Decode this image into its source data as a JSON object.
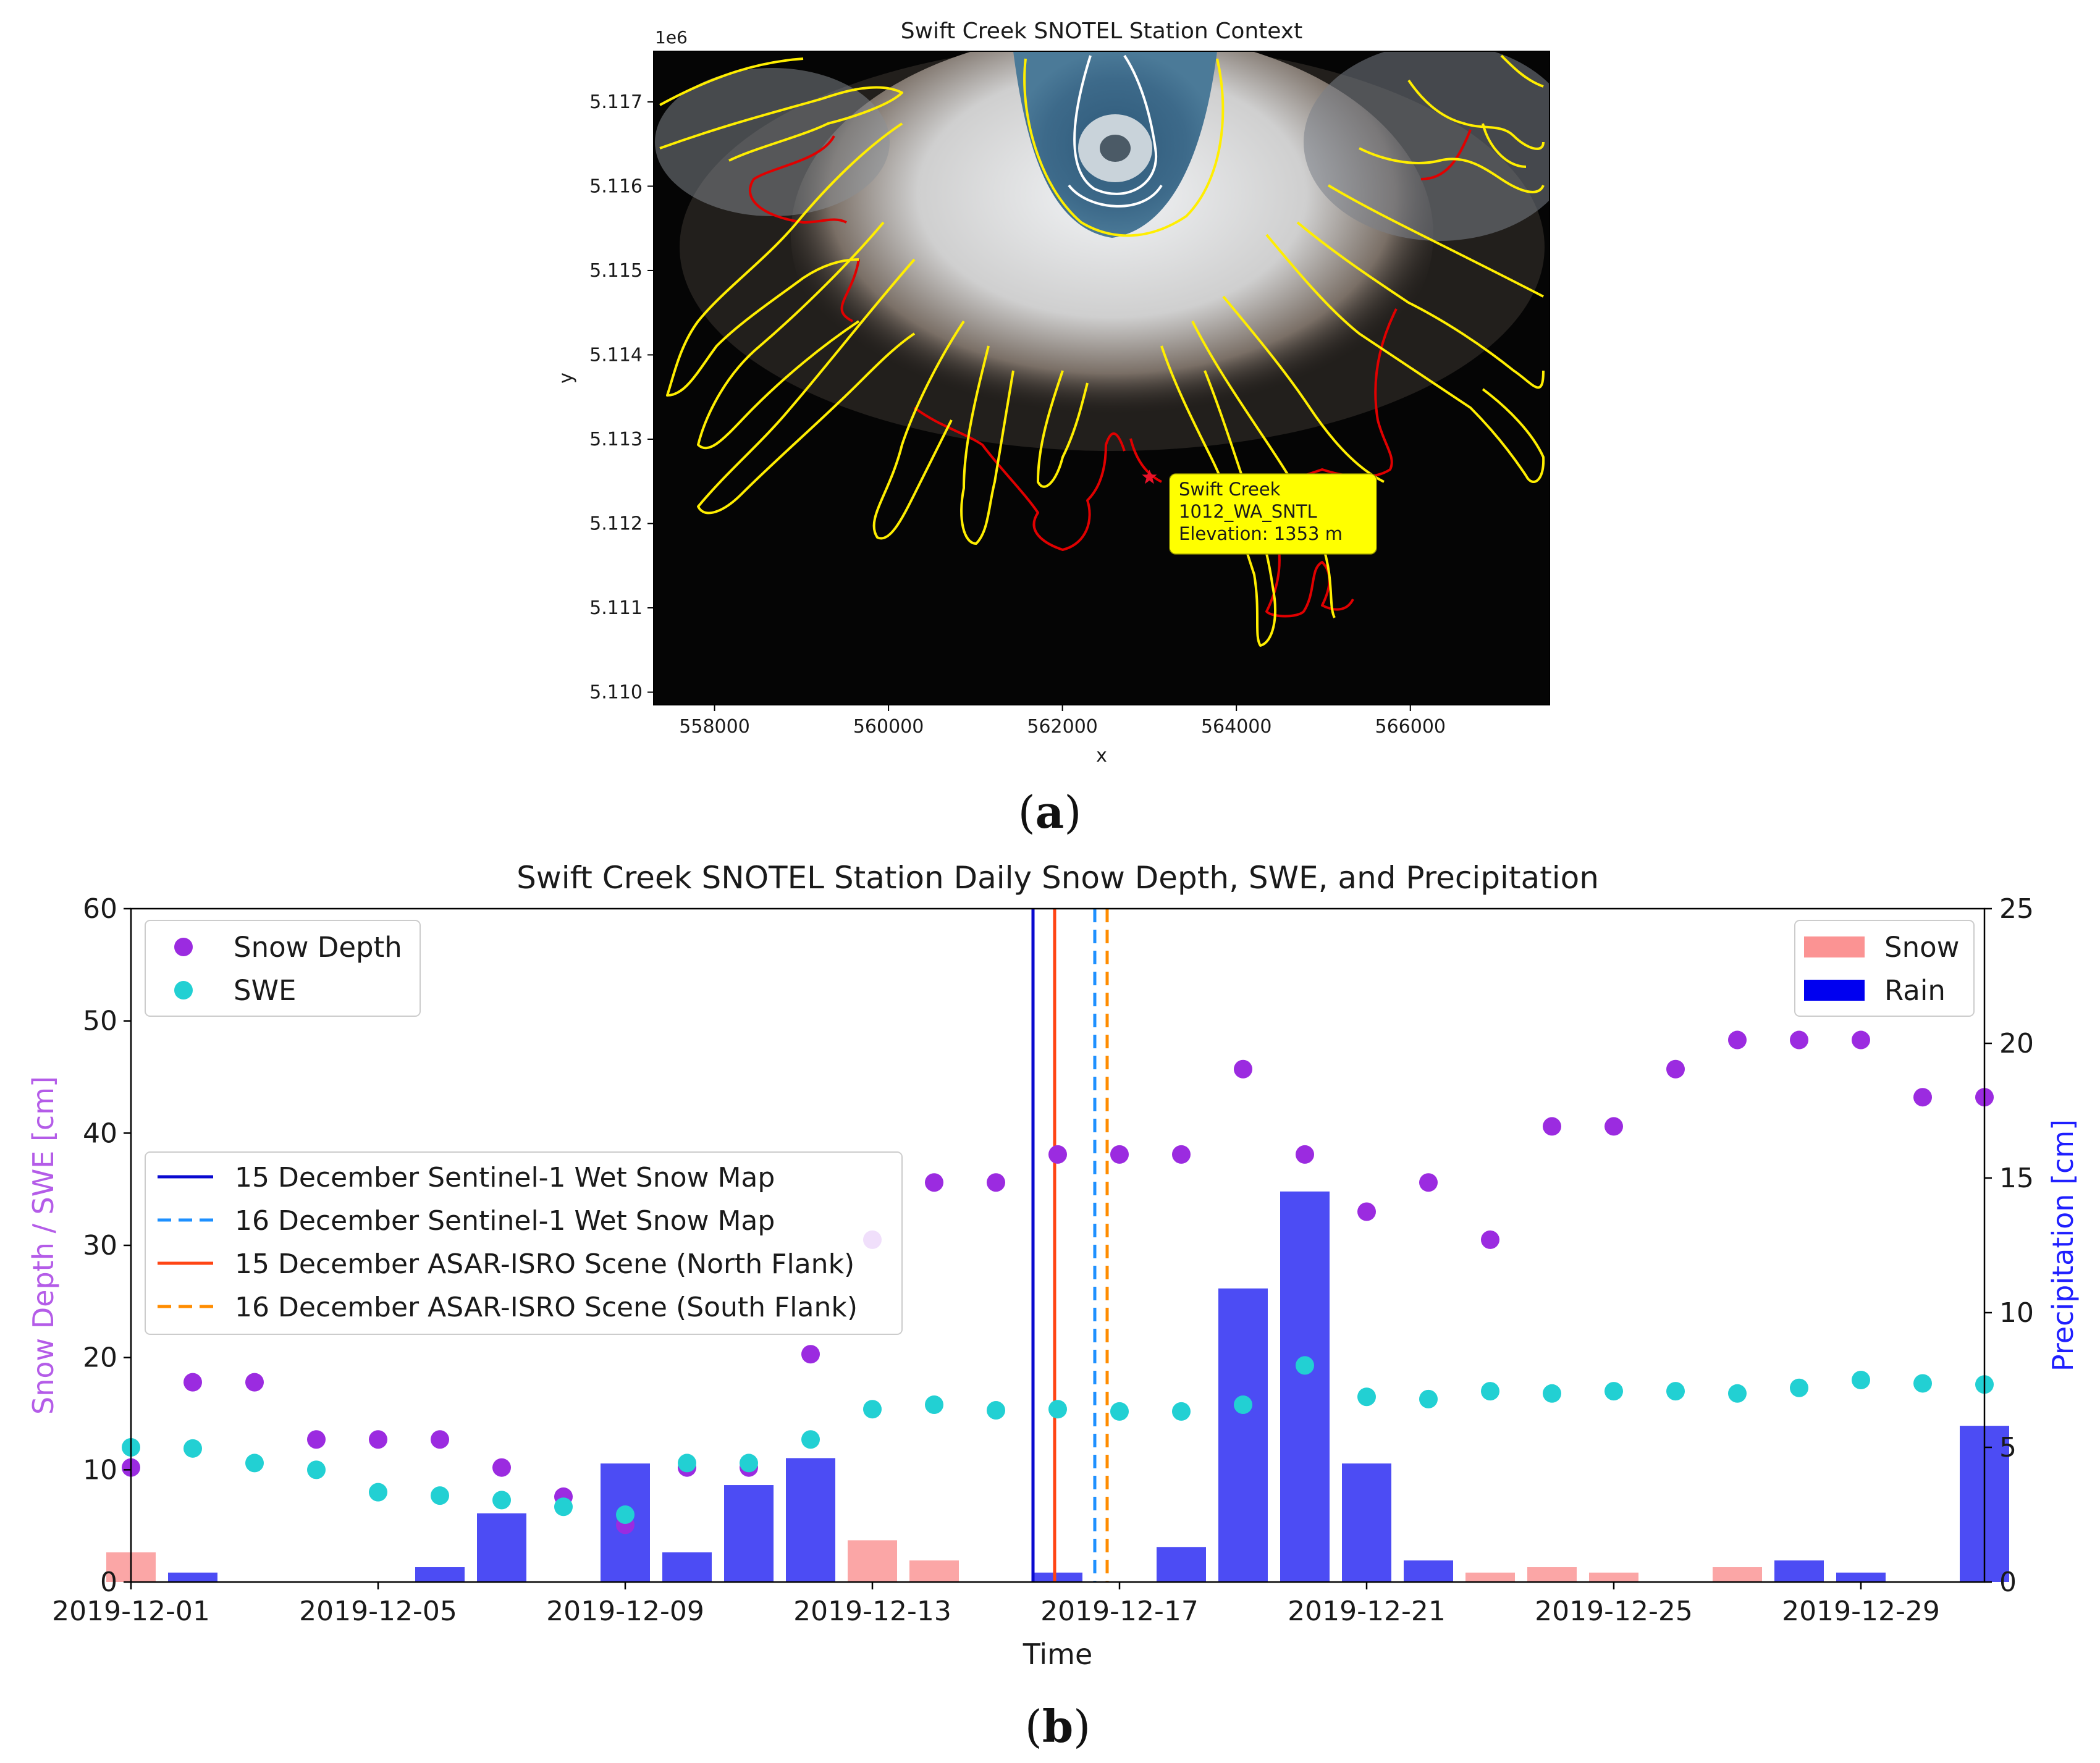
{
  "colors": {
    "snow_depth": "#9b2be0",
    "swe": "#22d0d3",
    "snow": "#fa8080",
    "rain": "#0000f0",
    "s1_line": "#0a0ad0",
    "asar_north": "#ff4514",
    "s1_dashed": "#1e90ff",
    "asar_south": "#ff8c00",
    "outline_yellow": "#ffee00",
    "outline_red": "#e00000",
    "label_box": "#ffff00",
    "left_axis_label": "#b45ce8",
    "right_axis_label": "#1f1fff"
  },
  "panel_a": {
    "caption_letter": "a",
    "chart_data": {
      "type": "map",
      "title": "Swift Creek SNOTEL Station Context",
      "xlabel": "x",
      "ylabel": "y",
      "y_offset_label": "1e6",
      "xlim": [
        557300,
        567600
      ],
      "ylim": [
        5.10985,
        5.1176
      ],
      "x_ticks": [
        558000,
        560000,
        562000,
        564000,
        566000
      ],
      "y_ticks": [
        5.11,
        5.111,
        5.112,
        5.113,
        5.114,
        5.115,
        5.116,
        5.117
      ],
      "x_tick_labels": [
        "558000",
        "560000",
        "562000",
        "564000",
        "566000"
      ],
      "y_tick_labels": [
        "5.110",
        "5.111",
        "5.112",
        "5.113",
        "5.114",
        "5.115",
        "5.116",
        "5.117"
      ],
      "station": {
        "name": "Swift Creek",
        "id": "1012_WA_SNTL",
        "elevation_text": "Elevation: 1353 m",
        "x": 563000,
        "y": 5.11255,
        "marker": "*"
      }
    }
  },
  "panel_b": {
    "caption_letter": "b",
    "chart_data": {
      "type": "scatter+bar",
      "title": "Swift Creek SNOTEL Station Daily Snow Depth, SWE, and Precipitation",
      "xlabel": "Time",
      "ylabel_left": "Snow Depth / SWE [cm]",
      "ylabel_right": "Precipitation [cm]",
      "ylim_left": [
        0,
        60
      ],
      "ylim_right": [
        0,
        25
      ],
      "x_start_date": "2019-12-01",
      "xlim_days": [
        0,
        30
      ],
      "x_tick_days": [
        0,
        4,
        8,
        12,
        16,
        20,
        24,
        28
      ],
      "x_tick_labels": [
        "2019-12-01",
        "2019-12-05",
        "2019-12-09",
        "2019-12-13",
        "2019-12-17",
        "2019-12-21",
        "2019-12-25",
        "2019-12-29"
      ],
      "y_ticks_left": [
        0,
        10,
        20,
        30,
        40,
        50,
        60
      ],
      "y_ticks_right": [
        0,
        5,
        10,
        15,
        20,
        25
      ],
      "days": [
        0,
        1,
        2,
        3,
        4,
        5,
        6,
        7,
        8,
        9,
        10,
        11,
        12,
        13,
        14,
        15,
        16,
        17,
        18,
        19,
        20,
        21,
        22,
        23,
        24,
        25,
        26,
        27,
        28,
        29,
        30
      ],
      "series": [
        {
          "name": "Snow Depth",
          "kind": "scatter",
          "values": [
            10.2,
            17.8,
            17.8,
            12.7,
            12.7,
            12.7,
            10.2,
            7.6,
            5.1,
            10.2,
            10.2,
            20.3,
            30.5,
            35.6,
            35.6,
            38.1,
            38.1,
            38.1,
            45.7,
            38.1,
            33.0,
            35.6,
            30.5,
            40.6,
            40.6,
            45.7,
            48.3,
            48.3,
            48.3,
            43.2,
            43.2
          ]
        },
        {
          "name": "SWE",
          "kind": "scatter",
          "values": [
            12.0,
            11.9,
            10.6,
            10.0,
            8.0,
            7.7,
            7.3,
            6.7,
            6.0,
            10.6,
            10.6,
            12.7,
            15.4,
            15.8,
            15.3,
            15.4,
            15.2,
            15.2,
            15.8,
            19.3,
            16.5,
            16.3,
            17.0,
            16.8,
            17.0,
            17.0,
            16.8,
            17.3,
            18.0,
            17.7,
            17.6
          ]
        },
        {
          "name": "Snow",
          "kind": "bar",
          "values": [
            1.1,
            0,
            0,
            0,
            0,
            0,
            0,
            0,
            0,
            0,
            0,
            0,
            1.55,
            0.8,
            0,
            0,
            0,
            0,
            0,
            0,
            0,
            0,
            0.35,
            0.55,
            0.35,
            0,
            0.55,
            0,
            0,
            0,
            0
          ]
        },
        {
          "name": "Rain",
          "kind": "bar",
          "values": [
            0,
            0.35,
            0,
            0,
            0,
            0.55,
            2.55,
            0,
            4.4,
            1.1,
            3.6,
            4.6,
            0,
            0,
            0,
            0.35,
            0,
            1.3,
            10.9,
            14.5,
            4.4,
            0.8,
            0,
            0,
            0,
            0,
            0,
            0.8,
            0.35,
            0,
            5.8
          ]
        }
      ],
      "vlines": [
        {
          "label": "15 December Sentinel-1 Wet Snow Map",
          "day": 14.6,
          "style": "solid",
          "color_key": "s1_line"
        },
        {
          "label": "16 December Sentinel-1 Wet Snow Map",
          "day": 15.6,
          "style": "dashed",
          "color_key": "s1_dashed"
        },
        {
          "label": "15 December ASAR-ISRO Scene (North Flank)",
          "day": 14.95,
          "style": "solid",
          "color_key": "asar_north"
        },
        {
          "label": "16 December ASAR-ISRO Scene (South Flank)",
          "day": 15.8,
          "style": "dashed",
          "color_key": "asar_south"
        }
      ],
      "legend_markers": [
        "Snow Depth",
        "SWE"
      ],
      "legend_bars": [
        "Snow",
        "Rain"
      ],
      "legend_markers_position": "upper-left",
      "legend_bars_position": "upper-right",
      "legend_lines_position": "center-left"
    }
  }
}
